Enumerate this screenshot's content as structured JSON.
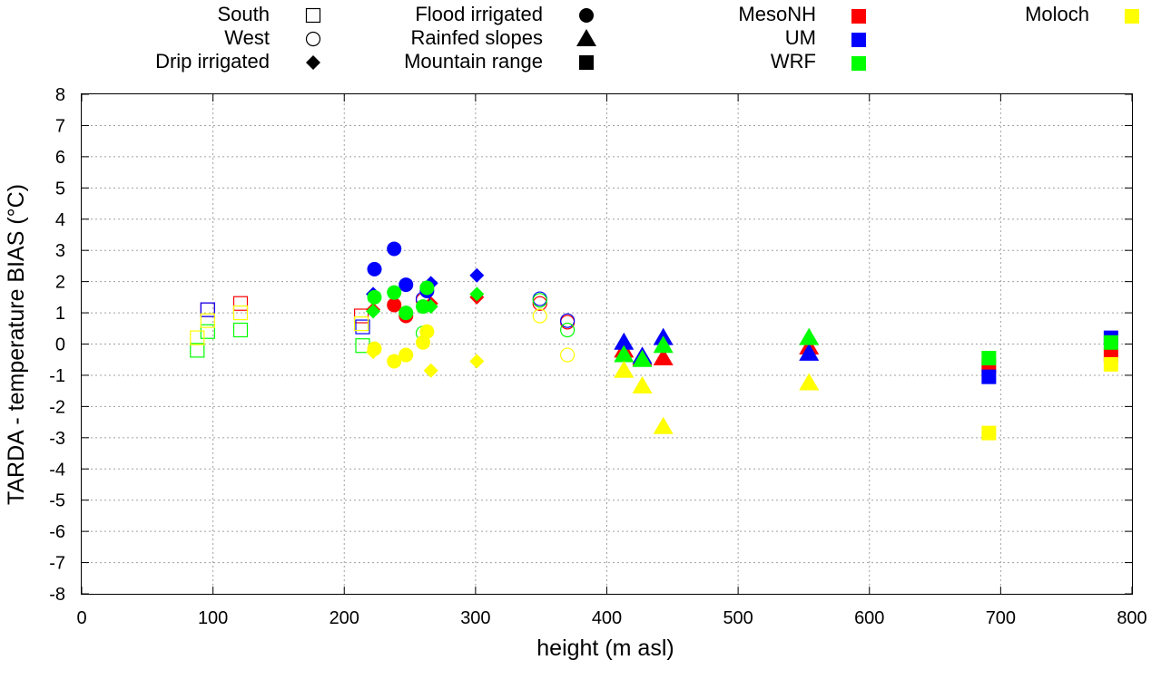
{
  "chart_data": {
    "type": "scatter",
    "title": "",
    "xlabel": "height (m asl)",
    "ylabel": "TARDA - temperature BIAS (°C)",
    "xlim": [
      0,
      800
    ],
    "ylim": [
      -8,
      8
    ],
    "xticks": [
      "0",
      "100",
      "200",
      "300",
      "400",
      "500",
      "600",
      "700",
      "800"
    ],
    "yticks": [
      "8",
      "7",
      "6",
      "5",
      "4",
      "3",
      "2",
      "1",
      "0",
      "-1",
      "-2",
      "-3",
      "-4",
      "-5",
      "-6",
      "-7",
      "-8"
    ],
    "grid": true,
    "legend_location": "top",
    "legend": {
      "sites": [
        {
          "label": "South",
          "marker": "open-square"
        },
        {
          "label": "West",
          "marker": "open-circle"
        },
        {
          "label": "Drip irrigated",
          "marker": "diamond"
        },
        {
          "label": "Flood irrigated",
          "marker": "circle"
        },
        {
          "label": "Rainfed slopes",
          "marker": "triangle"
        },
        {
          "label": "Mountain range",
          "marker": "square"
        }
      ],
      "models": [
        {
          "label": "MesoNH",
          "color": "#ff0000"
        },
        {
          "label": "UM",
          "color": "#0000ff"
        },
        {
          "label": "WRF",
          "color": "#00ff00"
        },
        {
          "label": "Moloch",
          "color": "#ffff00"
        }
      ]
    },
    "series": [
      {
        "name": "MesoNH",
        "color": "#ff0000",
        "points": [
          {
            "x": 96,
            "y": 1.1,
            "site": "South"
          },
          {
            "x": 121,
            "y": 1.3,
            "site": "South"
          },
          {
            "x": 213,
            "y": 0.9,
            "site": "South"
          },
          {
            "x": 260,
            "y": 1.4,
            "site": "West"
          },
          {
            "x": 349,
            "y": 1.3,
            "site": "West"
          },
          {
            "x": 370,
            "y": 0.7,
            "site": "West"
          },
          {
            "x": 222,
            "y": 1.1,
            "site": "Drip irrigated"
          },
          {
            "x": 266,
            "y": 1.3,
            "site": "Drip irrigated"
          },
          {
            "x": 301,
            "y": 1.5,
            "site": "Drip irrigated"
          },
          {
            "x": 238,
            "y": 1.25,
            "site": "Flood irrigated"
          },
          {
            "x": 247,
            "y": 0.9,
            "site": "Flood irrigated"
          },
          {
            "x": 413,
            "y": -0.2,
            "site": "Rainfed slopes"
          },
          {
            "x": 427,
            "y": -0.45,
            "site": "Rainfed slopes"
          },
          {
            "x": 443,
            "y": -0.45,
            "site": "Rainfed slopes"
          },
          {
            "x": 554,
            "y": -0.1,
            "site": "Rainfed slopes"
          },
          {
            "x": 691,
            "y": -0.7,
            "site": "Mountain range"
          },
          {
            "x": 784,
            "y": -0.35,
            "site": "Mountain range"
          }
        ]
      },
      {
        "name": "UM",
        "color": "#0000ff",
        "points": [
          {
            "x": 96,
            "y": 1.1,
            "site": "South"
          },
          {
            "x": 214,
            "y": 0.55,
            "site": "South"
          },
          {
            "x": 260,
            "y": 1.45,
            "site": "West"
          },
          {
            "x": 349,
            "y": 1.45,
            "site": "West"
          },
          {
            "x": 370,
            "y": 0.75,
            "site": "West"
          },
          {
            "x": 222,
            "y": 1.6,
            "site": "Drip irrigated"
          },
          {
            "x": 266,
            "y": 1.95,
            "site": "Drip irrigated"
          },
          {
            "x": 301,
            "y": 2.2,
            "site": "Drip irrigated"
          },
          {
            "x": 223,
            "y": 2.4,
            "site": "Flood irrigated"
          },
          {
            "x": 238,
            "y": 3.05,
            "site": "Flood irrigated"
          },
          {
            "x": 247,
            "y": 1.9,
            "site": "Flood irrigated"
          },
          {
            "x": 263,
            "y": 1.7,
            "site": "Flood irrigated"
          },
          {
            "x": 413,
            "y": 0.05,
            "site": "Rainfed slopes"
          },
          {
            "x": 427,
            "y": -0.4,
            "site": "Rainfed slopes"
          },
          {
            "x": 443,
            "y": 0.2,
            "site": "Rainfed slopes"
          },
          {
            "x": 554,
            "y": -0.3,
            "site": "Rainfed slopes"
          },
          {
            "x": 691,
            "y": -1.05,
            "site": "Mountain range"
          },
          {
            "x": 784,
            "y": 0.2,
            "site": "Mountain range"
          }
        ]
      },
      {
        "name": "WRF",
        "color": "#00ff00",
        "points": [
          {
            "x": 88,
            "y": -0.2,
            "site": "South"
          },
          {
            "x": 96,
            "y": 0.4,
            "site": "South"
          },
          {
            "x": 121,
            "y": 0.45,
            "site": "South"
          },
          {
            "x": 214,
            "y": -0.05,
            "site": "South"
          },
          {
            "x": 260,
            "y": 0.35,
            "site": "West"
          },
          {
            "x": 349,
            "y": 1.4,
            "site": "West"
          },
          {
            "x": 370,
            "y": 0.45,
            "site": "West"
          },
          {
            "x": 222,
            "y": 1.05,
            "site": "Drip irrigated"
          },
          {
            "x": 266,
            "y": 1.2,
            "site": "Drip irrigated"
          },
          {
            "x": 301,
            "y": 1.6,
            "site": "Drip irrigated"
          },
          {
            "x": 223,
            "y": 1.5,
            "site": "Flood irrigated"
          },
          {
            "x": 238,
            "y": 1.65,
            "site": "Flood irrigated"
          },
          {
            "x": 247,
            "y": 1.0,
            "site": "Flood irrigated"
          },
          {
            "x": 260,
            "y": 1.2,
            "site": "Flood irrigated"
          },
          {
            "x": 263,
            "y": 1.8,
            "site": "Flood irrigated"
          },
          {
            "x": 413,
            "y": -0.35,
            "site": "Rainfed slopes"
          },
          {
            "x": 427,
            "y": -0.5,
            "site": "Rainfed slopes"
          },
          {
            "x": 443,
            "y": -0.05,
            "site": "Rainfed slopes"
          },
          {
            "x": 554,
            "y": 0.2,
            "site": "Rainfed slopes"
          },
          {
            "x": 691,
            "y": -0.45,
            "site": "Mountain range"
          },
          {
            "x": 784,
            "y": 0.05,
            "site": "Mountain range"
          }
        ]
      },
      {
        "name": "Moloch",
        "color": "#ffff00",
        "points": [
          {
            "x": 88,
            "y": 0.2,
            "site": "South"
          },
          {
            "x": 96,
            "y": 0.75,
            "site": "South"
          },
          {
            "x": 121,
            "y": 1.0,
            "site": "South"
          },
          {
            "x": 213,
            "y": 0.65,
            "site": "South"
          },
          {
            "x": 349,
            "y": 0.9,
            "site": "West"
          },
          {
            "x": 370,
            "y": -0.35,
            "site": "West"
          },
          {
            "x": 222,
            "y": -0.25,
            "site": "Drip irrigated"
          },
          {
            "x": 266,
            "y": -0.85,
            "site": "Drip irrigated"
          },
          {
            "x": 301,
            "y": -0.55,
            "site": "Drip irrigated"
          },
          {
            "x": 223,
            "y": -0.15,
            "site": "Flood irrigated"
          },
          {
            "x": 238,
            "y": -0.55,
            "site": "Flood irrigated"
          },
          {
            "x": 247,
            "y": -0.35,
            "site": "Flood irrigated"
          },
          {
            "x": 260,
            "y": 0.05,
            "site": "Flood irrigated"
          },
          {
            "x": 263,
            "y": 0.4,
            "site": "Flood irrigated"
          },
          {
            "x": 413,
            "y": -0.85,
            "site": "Rainfed slopes"
          },
          {
            "x": 427,
            "y": -1.35,
            "site": "Rainfed slopes"
          },
          {
            "x": 443,
            "y": -2.65,
            "site": "Rainfed slopes"
          },
          {
            "x": 554,
            "y": -1.25,
            "site": "Rainfed slopes"
          },
          {
            "x": 691,
            "y": -2.85,
            "site": "Mountain range"
          },
          {
            "x": 784,
            "y": -0.65,
            "site": "Mountain range"
          }
        ]
      }
    ]
  }
}
